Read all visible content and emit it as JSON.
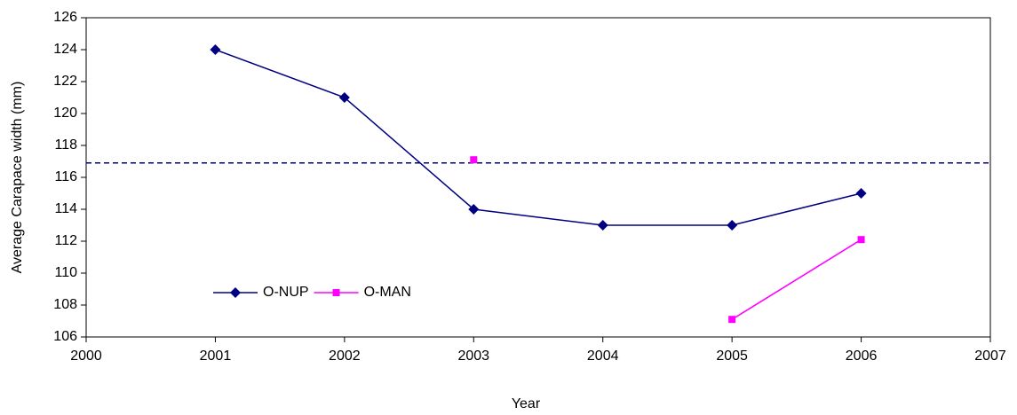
{
  "chart_data": {
    "type": "line",
    "xlabel": "Year",
    "ylabel": "Average Carapace width (mm)",
    "x": [
      2001,
      2002,
      2003,
      2004,
      2005,
      2006
    ],
    "series": [
      {
        "name": "O-NUP",
        "color": "#000080",
        "marker": "diamond",
        "values": [
          124,
          121,
          114,
          113,
          113,
          115
        ]
      },
      {
        "name": "O-MAN",
        "color": "#ff00ff",
        "marker": "square",
        "values": [
          null,
          null,
          117.1,
          null,
          107.1,
          112.1
        ]
      }
    ],
    "hline": {
      "value": 116.9,
      "color": "#000080",
      "dashed": true
    },
    "xlim": [
      2000,
      2007
    ],
    "xticks": [
      2000,
      2001,
      2002,
      2003,
      2004,
      2005,
      2006,
      2007
    ],
    "ylim": [
      106,
      126
    ],
    "yticks": [
      106,
      108,
      110,
      112,
      114,
      116,
      118,
      120,
      122,
      124,
      126
    ],
    "grid": false,
    "legend": "lower left"
  }
}
